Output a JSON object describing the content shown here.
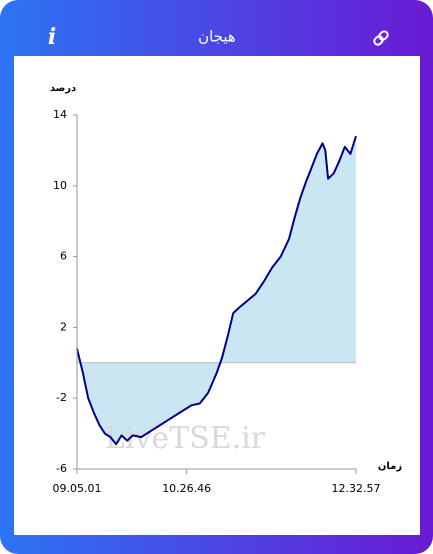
{
  "header": {
    "info": "i",
    "title": "هیجان"
  },
  "chart_data": {
    "type": "area",
    "y_label": "درصد",
    "x_label": "زمان",
    "watermark": "LiveTSE.ir",
    "x": [
      "09.05.01",
      "09.09.11",
      "09.13.20",
      "09.17.30",
      "09.21.39",
      "09.25.49",
      "09.29.58",
      "09.34.08",
      "09.38.17",
      "09.42.27",
      "09.46.36",
      "09.52.50",
      "09.59.05",
      "10.05.19",
      "10.11.33",
      "10.17.48",
      "10.24.02",
      "10.30.16",
      "10.36.30",
      "10.42.45",
      "10.48.59",
      "10.53.09",
      "10.57.18",
      "11.01.28",
      "11.05.37",
      "11.11.51",
      "11.18.06",
      "11.24.20",
      "11.30.34",
      "11.36.48",
      "11.43.03",
      "11.47.12",
      "11.51.22",
      "11.55.31",
      "11.59.41",
      "12.03.50",
      "12.08.00",
      "12.10.05",
      "12.12.09",
      "12.16.19",
      "12.20.28",
      "12.24.38",
      "12.28.47",
      "12.32.57"
    ],
    "series": [
      {
        "color": "#00008b",
        "fill": "#c9e6f2",
        "values": [
          0.8,
          -0.5,
          -2.0,
          -2.8,
          -3.5,
          -4.0,
          -4.2,
          -4.6,
          -4.1,
          -4.4,
          -4.1,
          -4.2,
          -3.9,
          -3.6,
          -3.3,
          -3.0,
          -2.7,
          -2.4,
          -2.3,
          -1.7,
          -0.6,
          0.3,
          1.5,
          2.8,
          3.1,
          3.5,
          3.9,
          4.6,
          5.4,
          6.0,
          7.0,
          8.2,
          9.3,
          10.2,
          11.0,
          11.8,
          12.4,
          12.0,
          10.4,
          10.7,
          11.4,
          12.2,
          11.8,
          12.8
        ]
      }
    ],
    "xlim": [
      "09.05.01",
      "12.32.57"
    ],
    "xticks": [
      "09.05.01",
      "10.26.46",
      "12.32.57"
    ],
    "ylim": [
      -6,
      14
    ],
    "yticks": [
      -6,
      -2,
      2,
      6,
      10,
      14
    ]
  }
}
